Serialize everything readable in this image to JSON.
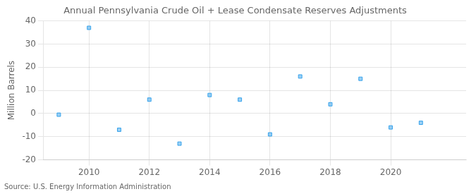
{
  "chart_data": {
    "type": "scatter",
    "title": "Annual Pennsylvania Crude Oil + Lease Condensate Reserves Adjustments",
    "ylabel": "Million Barrels",
    "annotation": "Source: U.S. Energy Information Administration",
    "x": [
      2009,
      2010,
      2011,
      2012,
      2013,
      2014,
      2015,
      2016,
      2017,
      2018,
      2019,
      2020,
      2021
    ],
    "values": [
      -0.5,
      37,
      -7,
      6,
      -13,
      8,
      6,
      -9,
      16,
      4,
      15,
      -6,
      -4
    ],
    "xlim": [
      2008.5,
      2022.5
    ],
    "ylim": [
      -20,
      40
    ],
    "xticks": [
      2010,
      2012,
      2014,
      2016,
      2018,
      2020
    ],
    "yticks": [
      -20,
      -10,
      0,
      10,
      20,
      30,
      40
    ],
    "marker": "square",
    "grid": true
  }
}
